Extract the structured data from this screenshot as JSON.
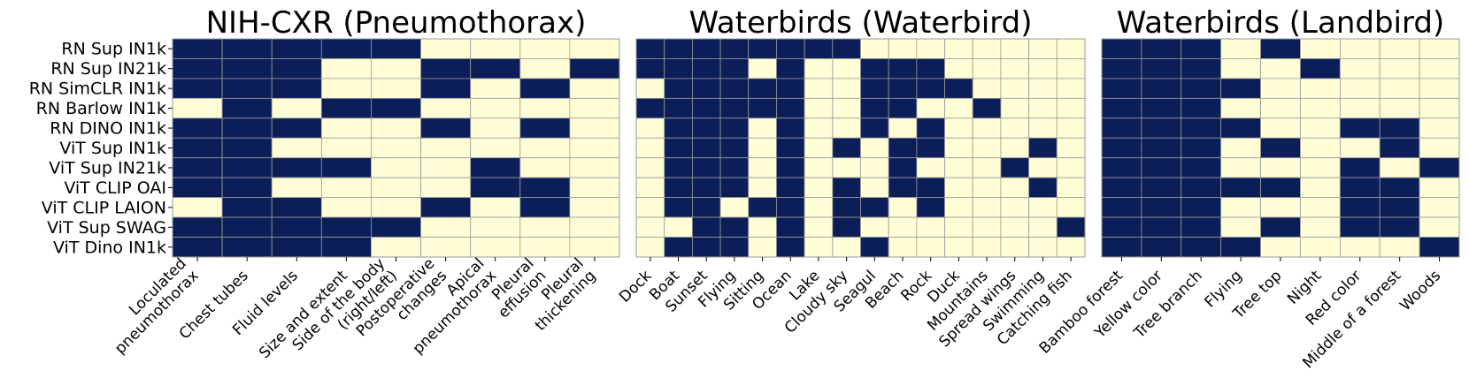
{
  "figure": {
    "background": "#ffffff"
  },
  "colors": {
    "present": "#0c1e58",
    "absent": "#fffed6",
    "grid": "#9a9a9a"
  },
  "chart_data": [
    {
      "type": "heatmap",
      "title": "NIH-CXR (Pneumothorax)",
      "rows": [
        "RN Sup IN1k",
        "RN Sup IN21k",
        "RN SimCLR IN1k",
        "RN Barlow IN1k",
        "RN DINO IN1k",
        "ViT Sup IN1k",
        "ViT Sup IN21k",
        "ViT CLIP OAI",
        "ViT CLIP LAION",
        "ViT Sup SWAG",
        "ViT Dino IN1k"
      ],
      "columns": [
        [
          "Loculated",
          "pneumothorax"
        ],
        [
          "Chest tubes"
        ],
        [
          "Fluid levels"
        ],
        [
          "Size and extent"
        ],
        [
          "Side of the body",
          "(right/left)"
        ],
        [
          "Postoperative",
          "changes"
        ],
        [
          "Apical",
          "pneumothorax"
        ],
        [
          "Pleural",
          "effusion"
        ],
        [
          "Pleural",
          "thickening"
        ]
      ],
      "values": [
        [
          1,
          1,
          1,
          1,
          1,
          0,
          0,
          0,
          0
        ],
        [
          1,
          1,
          1,
          0,
          0,
          1,
          1,
          0,
          1
        ],
        [
          1,
          1,
          1,
          0,
          0,
          1,
          0,
          1,
          0
        ],
        [
          0,
          1,
          0,
          1,
          1,
          0,
          0,
          0,
          0
        ],
        [
          1,
          1,
          1,
          0,
          0,
          1,
          0,
          1,
          0
        ],
        [
          1,
          1,
          0,
          0,
          0,
          0,
          0,
          0,
          0
        ],
        [
          1,
          1,
          1,
          1,
          0,
          0,
          1,
          0,
          0
        ],
        [
          1,
          1,
          0,
          0,
          0,
          0,
          1,
          1,
          0
        ],
        [
          0,
          1,
          1,
          0,
          0,
          1,
          0,
          1,
          0
        ],
        [
          1,
          1,
          1,
          1,
          1,
          0,
          0,
          0,
          0
        ],
        [
          1,
          1,
          1,
          1,
          0,
          0,
          0,
          0,
          0
        ]
      ]
    },
    {
      "type": "heatmap",
      "title": "Waterbirds (Waterbird)",
      "rows": [
        "RN Sup IN1k",
        "RN Sup IN21k",
        "RN SimCLR IN1k",
        "RN Barlow IN1k",
        "RN DINO IN1k",
        "ViT Sup IN1k",
        "ViT Sup IN21k",
        "ViT CLIP OAI",
        "ViT CLIP LAION",
        "ViT Sup SWAG",
        "ViT Dino IN1k"
      ],
      "columns": [
        [
          "Dock"
        ],
        [
          "Boat"
        ],
        [
          "Sunset"
        ],
        [
          "Flying"
        ],
        [
          "Sitting"
        ],
        [
          "Ocean"
        ],
        [
          "Lake"
        ],
        [
          "Cloudy sky"
        ],
        [
          "Seagul"
        ],
        [
          "Beach"
        ],
        [
          "Rock"
        ],
        [
          "Duck"
        ],
        [
          "Mountains"
        ],
        [
          "Spread wings"
        ],
        [
          "Swimming"
        ],
        [
          "Catching fish"
        ]
      ],
      "values": [
        [
          1,
          1,
          1,
          1,
          1,
          1,
          1,
          1,
          0,
          0,
          0,
          0,
          0,
          0,
          0,
          0
        ],
        [
          1,
          1,
          1,
          1,
          0,
          1,
          0,
          0,
          1,
          1,
          1,
          0,
          0,
          0,
          0,
          0
        ],
        [
          0,
          1,
          1,
          1,
          1,
          1,
          0,
          0,
          1,
          1,
          1,
          1,
          0,
          0,
          0,
          0
        ],
        [
          1,
          1,
          1,
          1,
          1,
          1,
          0,
          0,
          1,
          1,
          0,
          0,
          1,
          0,
          0,
          0
        ],
        [
          0,
          1,
          1,
          1,
          0,
          1,
          0,
          0,
          1,
          0,
          1,
          0,
          0,
          0,
          0,
          0
        ],
        [
          0,
          1,
          1,
          1,
          0,
          1,
          0,
          1,
          0,
          1,
          1,
          0,
          0,
          0,
          1,
          0
        ],
        [
          0,
          1,
          1,
          1,
          0,
          1,
          0,
          0,
          0,
          1,
          0,
          0,
          0,
          1,
          0,
          0
        ],
        [
          0,
          1,
          1,
          1,
          0,
          1,
          0,
          1,
          0,
          1,
          1,
          0,
          0,
          0,
          1,
          0
        ],
        [
          0,
          1,
          1,
          0,
          1,
          1,
          0,
          1,
          1,
          0,
          1,
          0,
          0,
          0,
          0,
          0
        ],
        [
          0,
          0,
          1,
          1,
          0,
          1,
          0,
          1,
          0,
          0,
          0,
          0,
          0,
          0,
          0,
          1
        ],
        [
          0,
          1,
          1,
          1,
          0,
          1,
          0,
          0,
          1,
          0,
          0,
          0,
          0,
          0,
          0,
          0
        ]
      ]
    },
    {
      "type": "heatmap",
      "title": "Waterbirds (Landbird)",
      "rows": [
        "RN Sup IN1k",
        "RN Sup IN21k",
        "RN SimCLR IN1k",
        "RN Barlow IN1k",
        "RN DINO IN1k",
        "ViT Sup IN1k",
        "ViT Sup IN21k",
        "ViT CLIP OAI",
        "ViT CLIP LAION",
        "ViT Sup SWAG",
        "ViT Dino IN1k"
      ],
      "columns": [
        [
          "Bamboo forest"
        ],
        [
          "Yellow color"
        ],
        [
          "Tree branch"
        ],
        [
          "Flying"
        ],
        [
          "Tree top"
        ],
        [
          "Night"
        ],
        [
          "Red color"
        ],
        [
          "Middle of a forest"
        ],
        [
          "Woods"
        ]
      ],
      "values": [
        [
          1,
          1,
          1,
          0,
          1,
          0,
          0,
          0,
          0
        ],
        [
          1,
          1,
          1,
          0,
          0,
          1,
          0,
          0,
          0
        ],
        [
          1,
          1,
          1,
          1,
          0,
          0,
          0,
          0,
          0
        ],
        [
          1,
          1,
          1,
          0,
          0,
          0,
          0,
          0,
          0
        ],
        [
          1,
          1,
          1,
          1,
          0,
          0,
          1,
          1,
          0
        ],
        [
          1,
          1,
          1,
          0,
          1,
          0,
          0,
          1,
          0
        ],
        [
          1,
          1,
          1,
          0,
          0,
          0,
          1,
          0,
          1
        ],
        [
          1,
          1,
          1,
          1,
          1,
          0,
          1,
          1,
          0
        ],
        [
          1,
          1,
          1,
          0,
          0,
          0,
          1,
          1,
          0
        ],
        [
          1,
          1,
          1,
          0,
          1,
          0,
          1,
          1,
          0
        ],
        [
          1,
          1,
          1,
          1,
          0,
          0,
          0,
          0,
          1
        ]
      ]
    }
  ]
}
